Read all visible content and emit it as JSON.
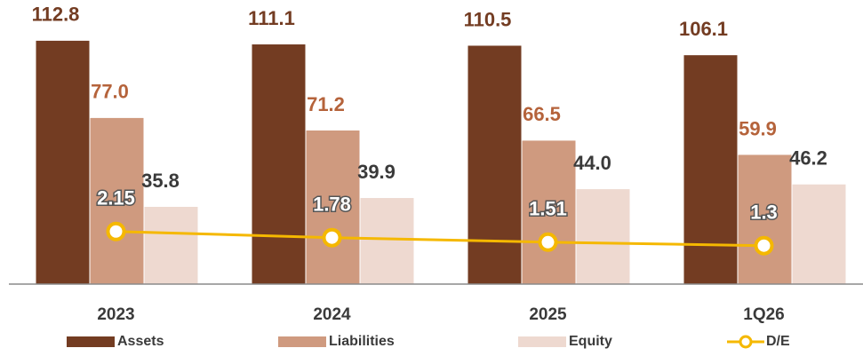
{
  "chart_data": {
    "type": "bar",
    "categories": [
      "2023",
      "2024",
      "2025",
      "1Q26"
    ],
    "series": [
      {
        "name": "Assets",
        "color": "#733c22",
        "values": [
          112.8,
          111.1,
          110.5,
          106.1
        ],
        "value_labels": [
          "112.8",
          "111.1",
          "110.5",
          "106.1"
        ]
      },
      {
        "name": "Liabilities",
        "color": "#cf9a7f",
        "values": [
          77.0,
          71.2,
          66.5,
          59.9
        ],
        "value_labels": [
          "77.0",
          "71.2",
          "66.5",
          "59.9"
        ]
      },
      {
        "name": "Equity",
        "color": "#eed9d0",
        "values": [
          35.8,
          39.9,
          44.0,
          46.2
        ],
        "value_labels": [
          "35.8",
          "39.9",
          "44.0",
          "46.2"
        ]
      },
      {
        "name": "D/E",
        "type": "line",
        "axis": "y2",
        "color": "#f5b800",
        "values": [
          2.15,
          1.78,
          1.51,
          1.3
        ]
      }
    ],
    "ylim": [
      0,
      120
    ],
    "y2lim": [
      -1,
      14.5
    ],
    "grid": false,
    "legend": "bottom"
  }
}
